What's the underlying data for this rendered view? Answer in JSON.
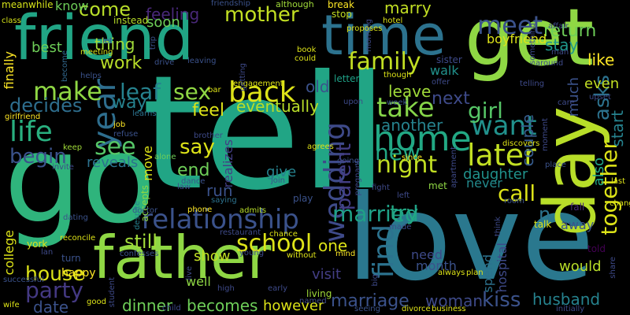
{
  "words": [
    {
      "text": "tell",
      "color": "#21a585"
    },
    {
      "text": "go",
      "color": "#2fb47c"
    },
    {
      "text": "love",
      "color": "#2a788e"
    },
    {
      "text": "friend",
      "color": "#21a585"
    },
    {
      "text": "get",
      "color": "#8fd744"
    },
    {
      "text": "time",
      "color": "#2c728e"
    },
    {
      "text": "day",
      "color": "#b8de29"
    },
    {
      "text": "father",
      "color": "#8fd744"
    },
    {
      "text": "relationship",
      "color": "#3b528b"
    },
    {
      "text": "back",
      "color": "#dde318"
    },
    {
      "text": "home",
      "color": "#22a884"
    },
    {
      "text": "wedding",
      "color": "#3e4a89"
    },
    {
      "text": "family",
      "color": "#c2df23"
    },
    {
      "text": "later",
      "color": "#c2df23"
    },
    {
      "text": "mother",
      "color": "#c2df23"
    },
    {
      "text": "school",
      "color": "#dde318"
    },
    {
      "text": "married",
      "color": "#1fa187"
    },
    {
      "text": "life",
      "color": "#29af7f"
    },
    {
      "text": "party",
      "color": "#443983"
    },
    {
      "text": "house",
      "color": "#dde318"
    },
    {
      "text": "together",
      "color": "#dde318"
    },
    {
      "text": "want",
      "color": "#21918c"
    },
    {
      "text": "night",
      "color": "#c2df23"
    },
    {
      "text": "take",
      "color": "#86d549"
    },
    {
      "text": "year",
      "color": "#2e6e8e"
    },
    {
      "text": "make",
      "color": "#8fd744"
    },
    {
      "text": "meet",
      "color": "#3b528b"
    },
    {
      "text": "find",
      "color": "#2c728e"
    },
    {
      "text": "see",
      "color": "#56c667"
    },
    {
      "text": "come",
      "color": "#b8de29"
    },
    {
      "text": "new",
      "color": "#22a884"
    },
    {
      "text": "leaf",
      "color": "#26828e"
    },
    {
      "text": "sex",
      "color": "#8fd744"
    },
    {
      "text": "girl",
      "color": "#56c667"
    },
    {
      "text": "kiss",
      "color": "#3b528b"
    },
    {
      "text": "husband",
      "color": "#26828e"
    },
    {
      "text": "marriage",
      "color": "#3b528b"
    },
    {
      "text": "parent",
      "color": "#433e85"
    },
    {
      "text": "call",
      "color": "#dde318"
    },
    {
      "text": "say",
      "color": "#dde318"
    },
    {
      "text": "asks",
      "color": "#2c728e"
    },
    {
      "text": "return",
      "color": "#6ece58"
    },
    {
      "text": "begin",
      "color": "#3b528b"
    },
    {
      "text": "decides",
      "color": "#2e6e8e"
    },
    {
      "text": "feeling",
      "color": "#482878"
    },
    {
      "text": "still",
      "color": "#a0da39"
    },
    {
      "text": "dinner",
      "color": "#6ece58"
    },
    {
      "text": "becomes",
      "color": "#6ece58"
    },
    {
      "text": "try",
      "color": "#22a884"
    },
    {
      "text": "woman",
      "color": "#3e4a89"
    },
    {
      "text": "start",
      "color": "#26828e"
    },
    {
      "text": "n",
      "color": "#2c728e"
    },
    {
      "text": "daughter",
      "color": "#20928c"
    },
    {
      "text": "visit",
      "color": "#433e85"
    },
    {
      "text": "end",
      "color": "#6ece58"
    },
    {
      "text": "run",
      "color": "#3b528b"
    },
    {
      "text": "give",
      "color": "#26828e"
    },
    {
      "text": "feel",
      "color": "#dde318"
    },
    {
      "text": "one",
      "color": "#dde318"
    },
    {
      "text": "date",
      "color": "#3b528b"
    },
    {
      "text": "work",
      "color": "#b8de29"
    },
    {
      "text": "eventually",
      "color": "#b8de29"
    },
    {
      "text": "leave",
      "color": "#a0da39"
    },
    {
      "text": "however",
      "color": "#dde318"
    },
    {
      "text": "like",
      "color": "#fde725"
    },
    {
      "text": "next",
      "color": "#3e4a89"
    },
    {
      "text": "marry",
      "color": "#c2df23"
    },
    {
      "text": "stay",
      "color": "#1f988b"
    },
    {
      "text": "old",
      "color": "#3b528b"
    },
    {
      "text": "would",
      "color": "#b8de29"
    },
    {
      "text": "way",
      "color": "#26828e"
    },
    {
      "text": "show",
      "color": "#c2df23"
    },
    {
      "text": "reveals",
      "color": "#2c728e"
    },
    {
      "text": "another",
      "color": "#26828e"
    },
    {
      "text": "couple",
      "color": "#365c8d"
    },
    {
      "text": "even",
      "color": "#c2df23"
    },
    {
      "text": "walk",
      "color": "#21918c"
    },
    {
      "text": "much",
      "color": "#3b528b"
    },
    {
      "text": "also",
      "color": "#21a585"
    },
    {
      "text": "away",
      "color": "#3b528b"
    },
    {
      "text": "never",
      "color": "#238a8d"
    },
    {
      "text": "thing",
      "color": "#a0da39"
    },
    {
      "text": "know",
      "color": "#6ece58"
    },
    {
      "text": "soon",
      "color": "#6ece58"
    },
    {
      "text": "best",
      "color": "#6ece58"
    },
    {
      "text": "finally",
      "color": "#fde725"
    },
    {
      "text": "college",
      "color": "#dde318"
    },
    {
      "text": "move",
      "color": "#dde318"
    },
    {
      "text": "realizes",
      "color": "#433e85"
    },
    {
      "text": "boyfriend",
      "color": "#dde318"
    },
    {
      "text": "spend",
      "color": "#2c728e"
    },
    {
      "text": "need",
      "color": "#3e4a89"
    },
    {
      "text": "month",
      "color": "#3b528b"
    },
    {
      "text": "happy",
      "color": "#fde725"
    },
    {
      "text": "well",
      "color": "#8fd744"
    },
    {
      "text": "sister",
      "color": "#3e4a89"
    },
    {
      "text": "letter",
      "color": "#1fa187"
    },
    {
      "text": "told",
      "color": "#440154"
    },
    {
      "text": "fall",
      "color": "#482878"
    },
    {
      "text": "hospital",
      "color": "#3e4a89"
    },
    {
      "text": "talk",
      "color": "#dde318"
    },
    {
      "text": "accepts",
      "color": "#8fd744"
    },
    {
      "text": "play",
      "color": "#3b528b"
    },
    {
      "text": "met",
      "color": "#8fd744"
    },
    {
      "text": "turn",
      "color": "#3b528b"
    },
    {
      "text": "meanwhile",
      "color": "#d5e21a"
    },
    {
      "text": "instead",
      "color": "#b8de29"
    },
    {
      "text": "break",
      "color": "#fde725"
    },
    {
      "text": "stop",
      "color": "#c2df23"
    },
    {
      "text": "although",
      "color": "#a0da39"
    },
    {
      "text": "friendship",
      "color": "#3b528b"
    },
    {
      "text": "class",
      "color": "#d5e21a"
    },
    {
      "text": "let",
      "color": "#3e4a89"
    },
    {
      "text": "meeting",
      "color": "#d5e21a"
    },
    {
      "text": "become",
      "color": "#31688e"
    },
    {
      "text": "helps",
      "color": "#3b528b"
    },
    {
      "text": "learns",
      "color": "#2c728e"
    },
    {
      "text": "job",
      "color": "#fde725"
    },
    {
      "text": "invite",
      "color": "#3e4a89"
    },
    {
      "text": "girlfriend",
      "color": "#fde725"
    },
    {
      "text": "keep",
      "color": "#a0da39"
    },
    {
      "text": "refuse",
      "color": "#3b528b"
    },
    {
      "text": "brother",
      "color": "#3e4a89"
    },
    {
      "text": "alone",
      "color": "#6ece58"
    },
    {
      "text": "law",
      "color": "#3e4a89"
    },
    {
      "text": "dance",
      "color": "#3b528b"
    },
    {
      "text": "saying",
      "color": "#2c728e"
    },
    {
      "text": "phone",
      "color": "#fde725"
    },
    {
      "text": "admits",
      "color": "#b8de29"
    },
    {
      "text": "restaurant",
      "color": "#3e4a89"
    },
    {
      "text": "chance",
      "color": "#dde318"
    },
    {
      "text": "young",
      "color": "#3e4a89"
    },
    {
      "text": "without",
      "color": "#dde318"
    },
    {
      "text": "mind",
      "color": "#fde725"
    },
    {
      "text": "confesses",
      "color": "#3b528b"
    },
    {
      "text": "doctor",
      "color": "#3b528b"
    },
    {
      "text": "despite",
      "color": "#26828e"
    },
    {
      "text": "dating",
      "color": "#3b528b"
    },
    {
      "text": "reconcile",
      "color": "#dde318"
    },
    {
      "text": "york",
      "color": "#dde318"
    },
    {
      "text": "successful",
      "color": "#3b528b"
    },
    {
      "text": "wife",
      "color": "#dde318"
    },
    {
      "text": "good",
      "color": "#dde318"
    },
    {
      "text": "student",
      "color": "#3e4a89"
    },
    {
      "text": "child",
      "color": "#3e4a89"
    },
    {
      "text": "high",
      "color": "#3e4a89"
    },
    {
      "text": "living",
      "color": "#a0da39"
    },
    {
      "text": "named",
      "color": "#3e4a89"
    },
    {
      "text": "seeing",
      "color": "#3b528b"
    },
    {
      "text": "divorce",
      "color": "#dde318"
    },
    {
      "text": "business",
      "color": "#dde318"
    },
    {
      "text": "initially",
      "color": "#3e4a89"
    },
    {
      "text": "share",
      "color": "#3e4a89"
    },
    {
      "text": "always",
      "color": "#dde318"
    },
    {
      "text": "plan",
      "color": "#dde318"
    },
    {
      "text": "think",
      "color": "#3e4a89"
    },
    {
      "text": "room",
      "color": "#3b528b"
    },
    {
      "text": "fight",
      "color": "#3e4a89"
    },
    {
      "text": "left",
      "color": "#3e4a89"
    },
    {
      "text": "join",
      "color": "#3b528b"
    },
    {
      "text": "agrees",
      "color": "#dde318"
    },
    {
      "text": "pregnant",
      "color": "#3e4a89"
    },
    {
      "text": "since",
      "color": "#fde725"
    },
    {
      "text": "going",
      "color": "#3b528b"
    },
    {
      "text": "discovers",
      "color": "#dde318"
    },
    {
      "text": "place",
      "color": "#3b528b"
    },
    {
      "text": "apartment",
      "color": "#3e4a89"
    },
    {
      "text": "moment",
      "color": "#3e4a89"
    },
    {
      "text": "care",
      "color": "#3e4a89"
    },
    {
      "text": "week",
      "color": "#3b528b"
    },
    {
      "text": "upon",
      "color": "#3e4a89"
    },
    {
      "text": "offer",
      "color": "#3e4a89"
    },
    {
      "text": "telling",
      "color": "#3e4a89"
    },
    {
      "text": "upset",
      "color": "#3e4a89"
    },
    {
      "text": "around",
      "color": "#3e4a89"
    },
    {
      "text": "man",
      "color": "#3e4a89"
    },
    {
      "text": "affair",
      "color": "#3e4a89"
    },
    {
      "text": "something",
      "color": "#3e4a89"
    },
    {
      "text": "hotel",
      "color": "#dde318"
    },
    {
      "text": "morning",
      "color": "#3e4a89"
    },
    {
      "text": "proposes",
      "color": "#dde318"
    },
    {
      "text": "though",
      "color": "#dde318"
    },
    {
      "text": "could",
      "color": "#dde318"
    },
    {
      "text": "book",
      "color": "#dde318"
    },
    {
      "text": "engagement",
      "color": "#dde318"
    },
    {
      "text": "getting",
      "color": "#3e4a89"
    },
    {
      "text": "bar",
      "color": "#dde318"
    },
    {
      "text": "drive",
      "color": "#3b528b"
    },
    {
      "text": "leaving",
      "color": "#3b528b"
    },
    {
      "text": "trip",
      "color": "#3b528b"
    },
    {
      "text": "last",
      "color": "#dde318"
    },
    {
      "text": "change",
      "color": "#dde318"
    },
    {
      "text": "made",
      "color": "#3e4a89"
    },
    {
      "text": "big",
      "color": "#3e4a89"
    },
    {
      "text": "live",
      "color": "#3e4a89"
    },
    {
      "text": "early",
      "color": "#3e4a89"
    },
    {
      "text": "lan",
      "color": "#3e4a89"
    }
  ]
}
